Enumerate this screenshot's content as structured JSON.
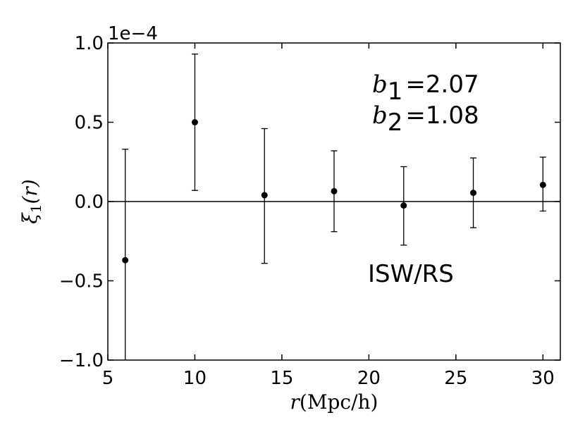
{
  "chart_data": {
    "type": "scatter",
    "x": [
      6,
      10,
      14,
      18,
      22,
      26,
      30
    ],
    "y": [
      -0.37,
      0.5,
      0.04,
      0.065,
      -0.025,
      0.055,
      0.105
    ],
    "yerr_upper": [
      0.33,
      0.93,
      0.46,
      0.32,
      0.22,
      0.275,
      0.28
    ],
    "yerr_lower": [
      -1.07,
      0.07,
      -0.39,
      -0.19,
      -0.275,
      -0.165,
      -0.06
    ],
    "xlim": [
      5,
      31
    ],
    "ylim": [
      -1.0,
      1.0
    ],
    "xticks": [
      "5",
      "10",
      "15",
      "20",
      "25",
      "30"
    ],
    "yticks": [
      "1.0",
      "0.5",
      "0.0",
      "−0.5",
      "−1.0"
    ],
    "y_multiplier": "1e−4",
    "xlabel_prefix": "r",
    "xlabel_paren": "(Mpc/h)",
    "ylabel_main": "ξ",
    "ylabel_sub": "1",
    "ylabel_paren": "(r)",
    "annotations": {
      "b1_sym": "b",
      "b1_sub": "1",
      "b1_val": "=2.07",
      "b2_sym": "b",
      "b2_sub": "2",
      "b2_val": "=1.08",
      "label": "ISW/RS"
    },
    "horizontal_line_y": 0.0
  }
}
